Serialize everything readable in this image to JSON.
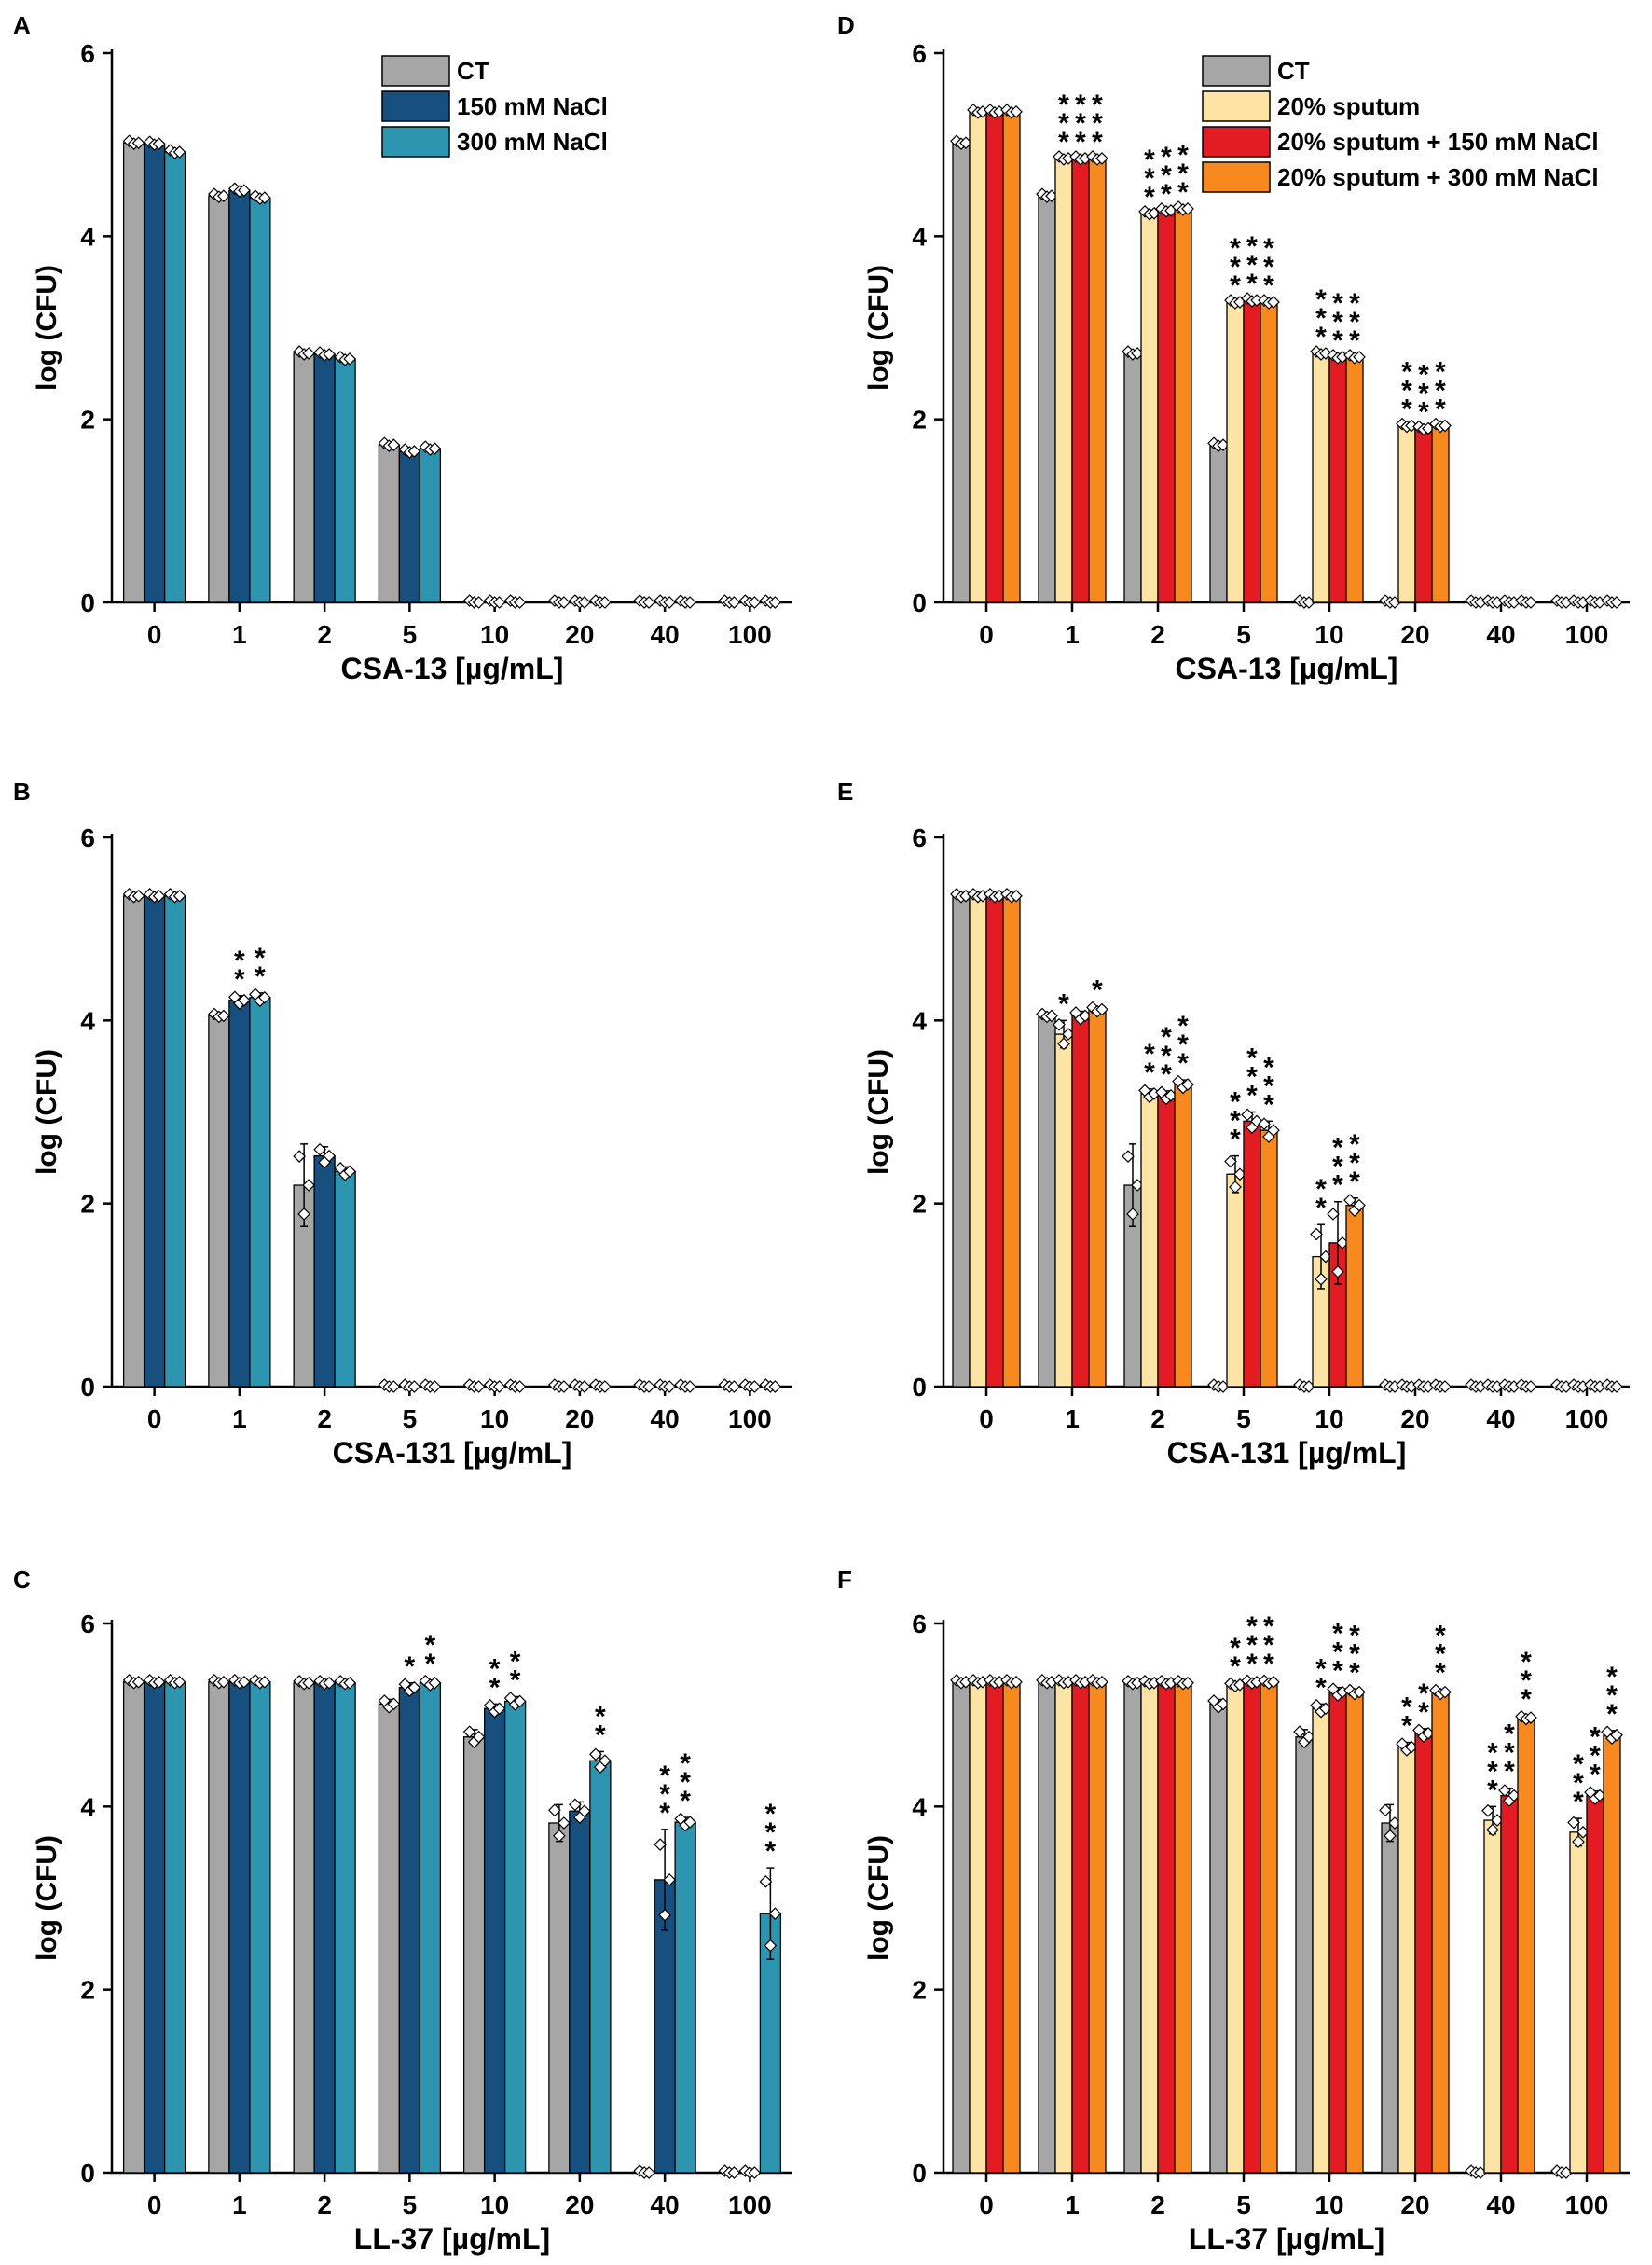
{
  "figure": {
    "legends": {
      "left": [
        "CT",
        "150 mM NaCl",
        "300 mM NaCl"
      ],
      "right": [
        "CT",
        "20% sputum",
        "20% sputum + 150 mM NaCl",
        "20% sputum + 300 mM NaCl"
      ]
    }
  },
  "chart_data": [
    {
      "panel": "A",
      "type": "bar",
      "title": "",
      "xlabel": "CSA-13 [µg/mL]",
      "ylabel": "log (CFU)",
      "ylim": [
        0,
        6
      ],
      "yticks": [
        "0",
        "2",
        "4",
        "6"
      ],
      "categories": [
        "0",
        "1",
        "2",
        "5",
        "10",
        "20",
        "40",
        "100"
      ],
      "legend": true,
      "legend_position": "top-right",
      "series": [
        {
          "name": "CT",
          "color": "#a6a6a6",
          "values": [
            5.02,
            4.44,
            2.72,
            1.72,
            0,
            0,
            0,
            0
          ],
          "err": [
            0,
            0,
            0,
            0,
            0,
            0,
            0,
            0
          ],
          "stars": [
            "",
            "",
            "",
            "",
            "",
            "",
            "",
            ""
          ]
        },
        {
          "name": "150 mM NaCl",
          "color": "#17507e",
          "values": [
            5.01,
            4.5,
            2.71,
            1.65,
            0,
            0,
            0,
            0
          ],
          "err": [
            0,
            0,
            0,
            0,
            0,
            0,
            0,
            0
          ],
          "stars": [
            "",
            "",
            "",
            "",
            "",
            "",
            "",
            ""
          ]
        },
        {
          "name": "300 mM NaCl",
          "color": "#2e95b0",
          "values": [
            4.92,
            4.42,
            2.66,
            1.68,
            0,
            0,
            0,
            0
          ],
          "err": [
            0,
            0,
            0,
            0,
            0,
            0,
            0,
            0
          ],
          "stars": [
            "",
            "",
            "",
            "",
            "",
            "",
            "",
            ""
          ]
        }
      ]
    },
    {
      "panel": "B",
      "type": "bar",
      "title": "",
      "xlabel": "CSA-131 [µg/mL]",
      "ylabel": "log (CFU)",
      "ylim": [
        0,
        6
      ],
      "yticks": [
        "0",
        "2",
        "4",
        "6"
      ],
      "categories": [
        "0",
        "1",
        "2",
        "5",
        "10",
        "20",
        "40",
        "100"
      ],
      "legend": false,
      "series": [
        {
          "name": "CT",
          "color": "#a6a6a6",
          "values": [
            5.36,
            4.05,
            2.2,
            0,
            0,
            0,
            0,
            0
          ],
          "err": [
            0,
            0,
            0.45,
            0,
            0,
            0,
            0,
            0
          ],
          "stars": [
            "",
            "",
            "",
            "",
            "",
            "",
            "",
            ""
          ]
        },
        {
          "name": "150 mM NaCl",
          "color": "#17507e",
          "values": [
            5.36,
            4.22,
            2.52,
            0,
            0,
            0,
            0,
            0
          ],
          "err": [
            0,
            0.05,
            0.1,
            0,
            0,
            0,
            0,
            0
          ],
          "stars": [
            "",
            "**",
            "",
            "",
            "",
            "",
            "",
            ""
          ]
        },
        {
          "name": "300 mM NaCl",
          "color": "#2e95b0",
          "values": [
            5.36,
            4.25,
            2.35,
            0,
            0,
            0,
            0,
            0
          ],
          "err": [
            0,
            0.05,
            0.05,
            0,
            0,
            0,
            0,
            0
          ],
          "stars": [
            "",
            "**",
            "",
            "",
            "",
            "",
            "",
            ""
          ]
        }
      ]
    },
    {
      "panel": "C",
      "type": "bar",
      "title": "",
      "xlabel": "LL-37 [µg/mL]",
      "ylabel": "log (CFU)",
      "ylim": [
        0,
        6
      ],
      "yticks": [
        "0",
        "2",
        "4",
        "6"
      ],
      "categories": [
        "0",
        "1",
        "2",
        "5",
        "10",
        "20",
        "40",
        "100"
      ],
      "legend": false,
      "series": [
        {
          "name": "CT",
          "color": "#a6a6a6",
          "values": [
            5.36,
            5.36,
            5.35,
            5.12,
            4.76,
            3.82,
            0,
            0
          ],
          "err": [
            0,
            0,
            0,
            0.05,
            0.08,
            0.2,
            0,
            0
          ],
          "stars": [
            "",
            "",
            "",
            "",
            "",
            "",
            "",
            ""
          ]
        },
        {
          "name": "150 mM NaCl",
          "color": "#17507e",
          "values": [
            5.36,
            5.36,
            5.35,
            5.3,
            5.07,
            3.95,
            3.2,
            0
          ],
          "err": [
            0,
            0,
            0,
            0.05,
            0.05,
            0.1,
            0.55,
            0
          ],
          "stars": [
            "",
            "",
            "",
            "*",
            "**",
            "",
            "***",
            ""
          ]
        },
        {
          "name": "300 mM NaCl",
          "color": "#2e95b0",
          "values": [
            5.36,
            5.36,
            5.35,
            5.35,
            5.15,
            4.5,
            3.83,
            2.83
          ],
          "err": [
            0,
            0,
            0,
            0.03,
            0.05,
            0.1,
            0.05,
            0.5
          ],
          "stars": [
            "",
            "",
            "",
            "**",
            "**",
            "**",
            "***",
            "***"
          ]
        }
      ]
    },
    {
      "panel": "D",
      "type": "bar",
      "title": "",
      "xlabel": "CSA-13 [µg/mL]",
      "ylabel": "log (CFU)",
      "ylim": [
        0,
        6
      ],
      "yticks": [
        "0",
        "2",
        "4",
        "6"
      ],
      "categories": [
        "0",
        "1",
        "2",
        "5",
        "10",
        "20",
        "40",
        "100"
      ],
      "legend": true,
      "legend_position": "top-right",
      "series": [
        {
          "name": "CT",
          "color": "#a6a6a6",
          "values": [
            5.02,
            4.44,
            2.72,
            1.72,
            0,
            0,
            0,
            0
          ],
          "err": [
            0,
            0,
            0,
            0,
            0,
            0,
            0,
            0
          ],
          "stars": [
            "",
            "",
            "",
            "",
            "",
            "",
            "",
            ""
          ]
        },
        {
          "name": "20% sputum",
          "color": "#fde3a4",
          "values": [
            5.36,
            4.85,
            4.25,
            3.28,
            2.72,
            1.93,
            0,
            0
          ],
          "err": [
            0,
            0,
            0,
            0,
            0,
            0,
            0,
            0
          ],
          "stars": [
            "",
            "***",
            "***",
            "***",
            "***",
            "***",
            "",
            ""
          ]
        },
        {
          "name": "20% sputum + 150 mM NaCl",
          "color": "#e31c24",
          "values": [
            5.36,
            4.85,
            4.28,
            3.3,
            2.68,
            1.9,
            0,
            0
          ],
          "err": [
            0,
            0,
            0,
            0,
            0,
            0,
            0,
            0
          ],
          "stars": [
            "",
            "***",
            "***",
            "***",
            "***",
            "***",
            "",
            ""
          ]
        },
        {
          "name": "20% sputum + 300 mM NaCl",
          "color": "#f7891e",
          "values": [
            5.36,
            4.85,
            4.3,
            3.28,
            2.68,
            1.93,
            0,
            0
          ],
          "err": [
            0,
            0,
            0,
            0,
            0,
            0,
            0,
            0
          ],
          "stars": [
            "",
            "***",
            "***",
            "***",
            "***",
            "***",
            "",
            ""
          ]
        }
      ]
    },
    {
      "panel": "E",
      "type": "bar",
      "title": "",
      "xlabel": "CSA-131 [µg/mL]",
      "ylabel": "log (CFU)",
      "ylim": [
        0,
        6
      ],
      "yticks": [
        "0",
        "2",
        "4",
        "6"
      ],
      "categories": [
        "0",
        "1",
        "2",
        "5",
        "10",
        "20",
        "40",
        "100"
      ],
      "legend": false,
      "series": [
        {
          "name": "CT",
          "color": "#a6a6a6",
          "values": [
            5.36,
            4.05,
            2.2,
            0,
            0,
            0,
            0,
            0
          ],
          "err": [
            0,
            0,
            0.45,
            0,
            0,
            0,
            0,
            0
          ],
          "stars": [
            "",
            "",
            "",
            "",
            "",
            "",
            "",
            ""
          ]
        },
        {
          "name": "20% sputum",
          "color": "#fde3a4",
          "values": [
            5.36,
            3.85,
            3.2,
            2.32,
            1.42,
            0,
            0,
            0
          ],
          "err": [
            0,
            0.15,
            0.05,
            0.2,
            0.35,
            0,
            0,
            0
          ],
          "stars": [
            "",
            "*",
            "**",
            "***",
            "**",
            "",
            "",
            ""
          ]
        },
        {
          "name": "20% sputum + 150 mM NaCl",
          "color": "#e31c24",
          "values": [
            5.36,
            4.05,
            3.18,
            2.9,
            1.57,
            0,
            0,
            0
          ],
          "err": [
            0,
            0.05,
            0.05,
            0.1,
            0.45,
            0,
            0,
            0
          ],
          "stars": [
            "",
            "",
            "***",
            "***",
            "***",
            "",
            "",
            ""
          ]
        },
        {
          "name": "20% sputum + 300 mM NaCl",
          "color": "#f7891e",
          "values": [
            5.36,
            4.12,
            3.3,
            2.8,
            1.98,
            0,
            0,
            0
          ],
          "err": [
            0,
            0.03,
            0.05,
            0.1,
            0.08,
            0,
            0,
            0
          ],
          "stars": [
            "",
            "*",
            "***",
            "***",
            "***",
            "",
            "",
            ""
          ]
        }
      ]
    },
    {
      "panel": "F",
      "type": "bar",
      "title": "",
      "xlabel": "LL-37 [µg/mL]",
      "ylabel": "log (CFU)",
      "ylim": [
        0,
        6
      ],
      "yticks": [
        "0",
        "2",
        "4",
        "6"
      ],
      "categories": [
        "0",
        "1",
        "2",
        "5",
        "10",
        "20",
        "40",
        "100"
      ],
      "legend": false,
      "series": [
        {
          "name": "CT",
          "color": "#a6a6a6",
          "values": [
            5.36,
            5.36,
            5.35,
            5.12,
            4.76,
            3.82,
            0,
            0
          ],
          "err": [
            0,
            0,
            0,
            0.05,
            0.08,
            0.2,
            0,
            0
          ],
          "stars": [
            "",
            "",
            "",
            "",
            "",
            "",
            "",
            ""
          ]
        },
        {
          "name": "20% sputum",
          "color": "#fde3a4",
          "values": [
            5.36,
            5.36,
            5.35,
            5.33,
            5.07,
            4.65,
            3.85,
            3.72
          ],
          "err": [
            0,
            0,
            0,
            0.02,
            0.05,
            0.05,
            0.15,
            0.15
          ],
          "stars": [
            "",
            "",
            "",
            "**",
            "**",
            "**",
            "***",
            "***"
          ]
        },
        {
          "name": "20% sputum + 150 mM NaCl",
          "color": "#e31c24",
          "values": [
            5.36,
            5.36,
            5.35,
            5.36,
            5.25,
            4.8,
            4.12,
            4.12
          ],
          "err": [
            0,
            0,
            0,
            0.02,
            0.05,
            0.05,
            0.08,
            0.05
          ],
          "stars": [
            "",
            "",
            "",
            "***",
            "***",
            "**",
            "***",
            "***"
          ]
        },
        {
          "name": "20% sputum + 300 mM NaCl",
          "color": "#f7891e",
          "values": [
            5.36,
            5.36,
            5.35,
            5.36,
            5.25,
            5.25,
            4.97,
            4.78
          ],
          "err": [
            0,
            0,
            0,
            0.02,
            0.03,
            0.03,
            0.02,
            0.05
          ],
          "stars": [
            "",
            "",
            "",
            "***",
            "***",
            "***",
            "***",
            "***"
          ]
        }
      ]
    }
  ]
}
